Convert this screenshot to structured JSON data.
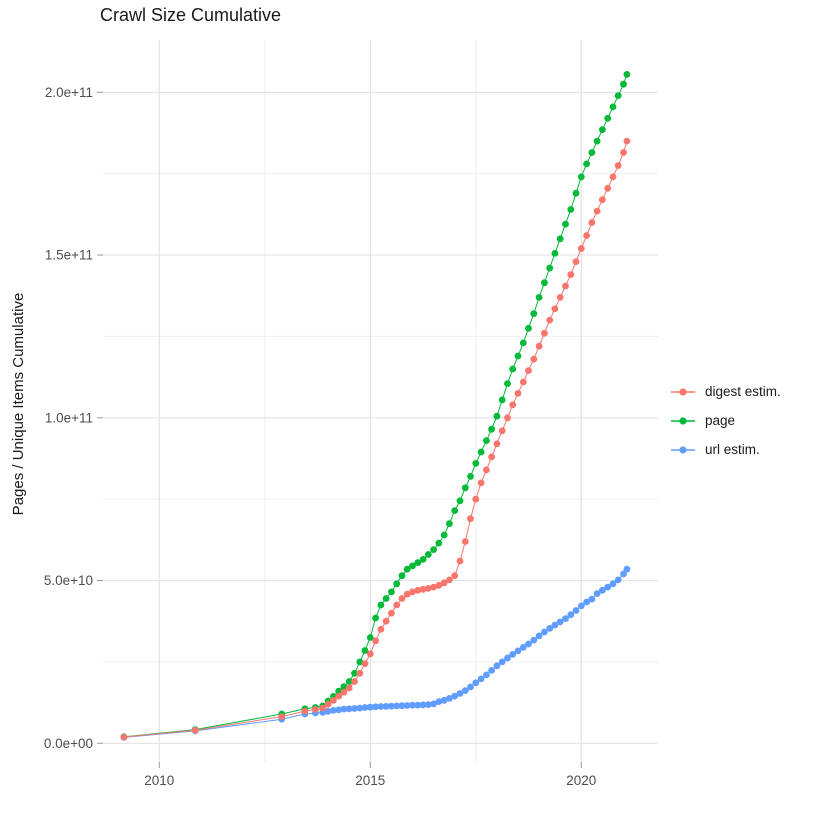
{
  "title": "Crawl Size Cumulative",
  "y_axis": {
    "label": "Pages / Unique Items Cumulative",
    "ticks": [
      {
        "label": "0.0e+00",
        "value_e9": 0
      },
      {
        "label": "5.0e+10",
        "value_e9": 50
      },
      {
        "label": "1.0e+11",
        "value_e9": 100
      },
      {
        "label": "1.5e+11",
        "value_e9": 150
      },
      {
        "label": "2.0e+11",
        "value_e9": 200
      }
    ],
    "minor_values_e9": [
      25,
      75,
      125,
      175
    ]
  },
  "x_axis": {
    "ticks": [
      {
        "label": "2010",
        "value": 2010
      },
      {
        "label": "2015",
        "value": 2015
      },
      {
        "label": "2020",
        "value": 2020
      }
    ],
    "minor_values": [
      2012.5,
      2017.5
    ]
  },
  "legend": {
    "items": [
      {
        "label": "digest estim.",
        "color": "#F8766D"
      },
      {
        "label": "page",
        "color": "#00BA38"
      },
      {
        "label": "url estim.",
        "color": "#619CFF"
      }
    ]
  },
  "colors": {
    "grid_major": "#E3E3E3",
    "grid_minor": "#EFEFEF",
    "tick_mark": "#999999",
    "tick_text": "#4d4d4d"
  },
  "chart_data": {
    "type": "line",
    "marker": "point",
    "title": "Crawl Size Cumulative",
    "xlabel": "",
    "ylabel": "Pages / Unique Items Cumulative",
    "x_unit": "year",
    "y_unit": "count (values in billions, 1e9)",
    "xlim": [
      2008.6,
      2021.8
    ],
    "ylim_e9": [
      -10,
      216
    ],
    "grid": true,
    "legend_position": "right",
    "series": [
      {
        "name": "url estim.",
        "color": "#619CFF",
        "points_year_value_e9": [
          [
            2009.16,
            1.8
          ],
          [
            2010.85,
            3.8
          ],
          [
            2012.9,
            7.4
          ],
          [
            2013.45,
            9.0
          ],
          [
            2013.7,
            9.3
          ],
          [
            2013.875,
            9.5
          ],
          [
            2014.0,
            9.8
          ],
          [
            2014.125,
            10.1
          ],
          [
            2014.25,
            10.3
          ],
          [
            2014.375,
            10.5
          ],
          [
            2014.5,
            10.6
          ],
          [
            2014.625,
            10.7
          ],
          [
            2014.75,
            10.8
          ],
          [
            2014.875,
            11.0
          ],
          [
            2015.0,
            11.1
          ],
          [
            2015.125,
            11.2
          ],
          [
            2015.25,
            11.3
          ],
          [
            2015.375,
            11.35
          ],
          [
            2015.5,
            11.4
          ],
          [
            2015.625,
            11.5
          ],
          [
            2015.75,
            11.55
          ],
          [
            2015.875,
            11.6
          ],
          [
            2016.0,
            11.7
          ],
          [
            2016.125,
            11.75
          ],
          [
            2016.25,
            11.8
          ],
          [
            2016.375,
            11.9
          ],
          [
            2016.5,
            12.1
          ],
          [
            2016.625,
            12.8
          ],
          [
            2016.75,
            13.2
          ],
          [
            2016.875,
            13.8
          ],
          [
            2017.0,
            14.5
          ],
          [
            2017.125,
            15.3
          ],
          [
            2017.25,
            16.2
          ],
          [
            2017.375,
            17.3
          ],
          [
            2017.5,
            18.6
          ],
          [
            2017.625,
            19.8
          ],
          [
            2017.75,
            21.0
          ],
          [
            2017.875,
            22.4
          ],
          [
            2018.0,
            23.8
          ],
          [
            2018.125,
            25.0
          ],
          [
            2018.25,
            26.2
          ],
          [
            2018.375,
            27.3
          ],
          [
            2018.5,
            28.4
          ],
          [
            2018.625,
            29.5
          ],
          [
            2018.75,
            30.5
          ],
          [
            2018.875,
            31.7
          ],
          [
            2019.0,
            33.0
          ],
          [
            2019.125,
            34.2
          ],
          [
            2019.25,
            35.3
          ],
          [
            2019.375,
            36.3
          ],
          [
            2019.5,
            37.3
          ],
          [
            2019.625,
            38.3
          ],
          [
            2019.75,
            39.5
          ],
          [
            2019.875,
            40.8
          ],
          [
            2020.0,
            42.2
          ],
          [
            2020.125,
            43.4
          ],
          [
            2020.25,
            44.3
          ],
          [
            2020.375,
            46.0
          ],
          [
            2020.5,
            47.0
          ],
          [
            2020.625,
            48.0
          ],
          [
            2020.75,
            49.0
          ],
          [
            2020.875,
            50.2
          ],
          [
            2021.0,
            52.0
          ],
          [
            2021.08,
            53.5
          ]
        ]
      },
      {
        "name": "page",
        "color": "#00BA38",
        "points_year_value_e9": [
          [
            2009.16,
            2.0
          ],
          [
            2010.85,
            4.2
          ],
          [
            2012.9,
            9.0
          ],
          [
            2013.45,
            10.6
          ],
          [
            2013.7,
            11.0
          ],
          [
            2013.875,
            11.5
          ],
          [
            2014.0,
            13.0
          ],
          [
            2014.125,
            14.4
          ],
          [
            2014.25,
            16.0
          ],
          [
            2014.375,
            17.4
          ],
          [
            2014.5,
            19.0
          ],
          [
            2014.625,
            21.5
          ],
          [
            2014.75,
            25.0
          ],
          [
            2014.875,
            28.5
          ],
          [
            2015.0,
            32.5
          ],
          [
            2015.125,
            38.5
          ],
          [
            2015.25,
            42.5
          ],
          [
            2015.375,
            44.5
          ],
          [
            2015.5,
            46.5
          ],
          [
            2015.625,
            49.0
          ],
          [
            2015.75,
            51.5
          ],
          [
            2015.875,
            53.5
          ],
          [
            2016.0,
            54.5
          ],
          [
            2016.125,
            55.5
          ],
          [
            2016.25,
            56.5
          ],
          [
            2016.375,
            58.0
          ],
          [
            2016.5,
            59.5
          ],
          [
            2016.625,
            61.5
          ],
          [
            2016.75,
            64.0
          ],
          [
            2016.875,
            67.5
          ],
          [
            2017.0,
            71.5
          ],
          [
            2017.125,
            74.5
          ],
          [
            2017.25,
            78.5
          ],
          [
            2017.375,
            82.0
          ],
          [
            2017.5,
            86.0
          ],
          [
            2017.625,
            89.5
          ],
          [
            2017.75,
            93.0
          ],
          [
            2017.875,
            96.5
          ],
          [
            2018.0,
            100.5
          ],
          [
            2018.125,
            105.5
          ],
          [
            2018.25,
            110.5
          ],
          [
            2018.375,
            115.0
          ],
          [
            2018.5,
            119.0
          ],
          [
            2018.625,
            123.0
          ],
          [
            2018.75,
            127.5
          ],
          [
            2018.875,
            132.0
          ],
          [
            2019.0,
            137.0
          ],
          [
            2019.125,
            141.5
          ],
          [
            2019.25,
            146.0
          ],
          [
            2019.375,
            150.5
          ],
          [
            2019.5,
            155.0
          ],
          [
            2019.625,
            159.5
          ],
          [
            2019.75,
            164.0
          ],
          [
            2019.875,
            169.0
          ],
          [
            2020.0,
            174.0
          ],
          [
            2020.125,
            178.0
          ],
          [
            2020.25,
            181.5
          ],
          [
            2020.375,
            185.0
          ],
          [
            2020.5,
            188.5
          ],
          [
            2020.625,
            192.0
          ],
          [
            2020.75,
            195.5
          ],
          [
            2020.875,
            199.0
          ],
          [
            2021.0,
            202.5
          ],
          [
            2021.08,
            205.5
          ]
        ]
      },
      {
        "name": "digest estim.",
        "color": "#F8766D",
        "points_year_value_e9": [
          [
            2009.16,
            1.9
          ],
          [
            2010.85,
            4.0
          ],
          [
            2012.9,
            8.2
          ],
          [
            2013.45,
            9.9
          ],
          [
            2013.7,
            10.4
          ],
          [
            2013.875,
            10.8
          ],
          [
            2014.0,
            12.0
          ],
          [
            2014.125,
            13.2
          ],
          [
            2014.25,
            14.5
          ],
          [
            2014.375,
            15.7
          ],
          [
            2014.5,
            17.0
          ],
          [
            2014.625,
            19.0
          ],
          [
            2014.75,
            21.5
          ],
          [
            2014.875,
            24.5
          ],
          [
            2015.0,
            27.5
          ],
          [
            2015.125,
            31.5
          ],
          [
            2015.25,
            35.0
          ],
          [
            2015.375,
            37.5
          ],
          [
            2015.5,
            40.0
          ],
          [
            2015.625,
            42.5
          ],
          [
            2015.75,
            44.5
          ],
          [
            2015.875,
            45.8
          ],
          [
            2016.0,
            46.5
          ],
          [
            2016.125,
            47.0
          ],
          [
            2016.25,
            47.3
          ],
          [
            2016.375,
            47.6
          ],
          [
            2016.5,
            48.0
          ],
          [
            2016.625,
            48.5
          ],
          [
            2016.75,
            49.3
          ],
          [
            2016.875,
            50.2
          ],
          [
            2017.0,
            51.5
          ],
          [
            2017.125,
            56.0
          ],
          [
            2017.25,
            62.0
          ],
          [
            2017.375,
            69.0
          ],
          [
            2017.5,
            75.0
          ],
          [
            2017.625,
            80.0
          ],
          [
            2017.75,
            84.0
          ],
          [
            2017.875,
            88.0
          ],
          [
            2018.0,
            92.0
          ],
          [
            2018.125,
            96.0
          ],
          [
            2018.25,
            100.0
          ],
          [
            2018.375,
            104.0
          ],
          [
            2018.5,
            107.5
          ],
          [
            2018.625,
            111.0
          ],
          [
            2018.75,
            114.5
          ],
          [
            2018.875,
            118.0
          ],
          [
            2019.0,
            122.0
          ],
          [
            2019.125,
            126.0
          ],
          [
            2019.25,
            130.0
          ],
          [
            2019.375,
            133.5
          ],
          [
            2019.5,
            137.0
          ],
          [
            2019.625,
            140.5
          ],
          [
            2019.75,
            144.0
          ],
          [
            2019.875,
            148.0
          ],
          [
            2020.0,
            152.0
          ],
          [
            2020.125,
            156.0
          ],
          [
            2020.25,
            160.0
          ],
          [
            2020.375,
            163.5
          ],
          [
            2020.5,
            167.0
          ],
          [
            2020.625,
            170.5
          ],
          [
            2020.75,
            174.0
          ],
          [
            2020.875,
            177.5
          ],
          [
            2021.0,
            181.5
          ],
          [
            2021.08,
            185.0
          ]
        ]
      }
    ]
  }
}
